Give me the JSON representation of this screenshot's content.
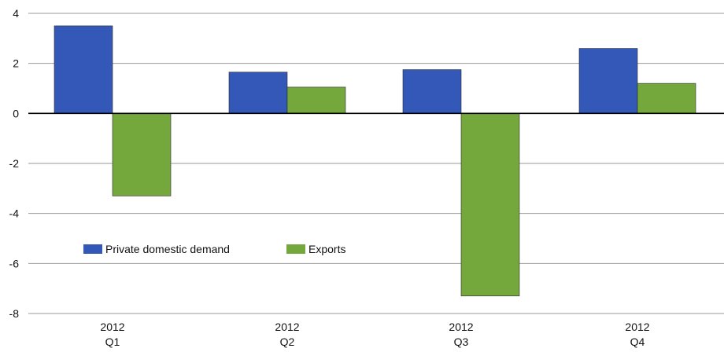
{
  "chart_data": {
    "type": "bar",
    "categories": [
      {
        "line1": "2012",
        "line2": "Q1"
      },
      {
        "line1": "2012",
        "line2": "Q2"
      },
      {
        "line1": "2012",
        "line2": "Q3"
      },
      {
        "line1": "2012",
        "line2": "Q4"
      }
    ],
    "series": [
      {
        "name": "Private domestic demand",
        "color": "#3358B8",
        "values": [
          3.5,
          1.65,
          1.75,
          2.6
        ]
      },
      {
        "name": "Exports",
        "color": "#74A83C",
        "values": [
          -3.3,
          1.05,
          -7.3,
          1.2
        ]
      }
    ],
    "ylim": [
      -8,
      4
    ],
    "yticks": [
      "4",
      "2",
      "0",
      "-2",
      "-4",
      "-6",
      "-8"
    ],
    "ytick_values": [
      4,
      2,
      0,
      -2,
      -4,
      -6,
      -8
    ],
    "grid": true,
    "legend_position": "lower-left"
  }
}
